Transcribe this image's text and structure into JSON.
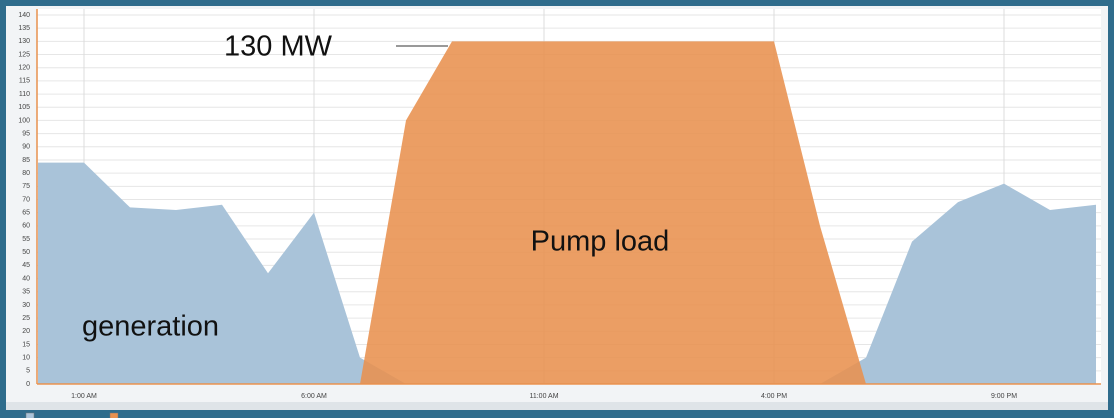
{
  "chart_data": {
    "type": "area",
    "annotation": "130 MW",
    "categories": [
      null,
      "1:00 AM",
      null,
      null,
      null,
      null,
      "6:00 AM",
      null,
      null,
      null,
      null,
      "11:00 AM",
      null,
      null,
      null,
      null,
      "4:00 PM",
      null,
      null,
      null,
      null,
      "9:00 PM",
      null,
      null
    ],
    "series": [
      {
        "name": "generation",
        "color": "#a9c3d9",
        "values": [
          84,
          84,
          67,
          66,
          68,
          42,
          65,
          10,
          0,
          0,
          0,
          0,
          0,
          0,
          0,
          0,
          0,
          0,
          10,
          54,
          69,
          76,
          66,
          68
        ]
      },
      {
        "name": "Pump load",
        "color": "#e8914f",
        "values": [
          0,
          0,
          0,
          0,
          0,
          0,
          0,
          0,
          100,
          130,
          130,
          130,
          130,
          130,
          130,
          130,
          130,
          60,
          0,
          0,
          0,
          0,
          0,
          0
        ]
      }
    ],
    "ylim": [
      0,
      140
    ],
    "yticks": [
      0,
      5,
      10,
      15,
      20,
      25,
      30,
      35,
      40,
      45,
      50,
      55,
      60,
      65,
      70,
      75,
      80,
      85,
      90,
      95,
      100,
      105,
      110,
      115,
      120,
      125,
      130,
      135,
      140
    ],
    "grid": true
  }
}
